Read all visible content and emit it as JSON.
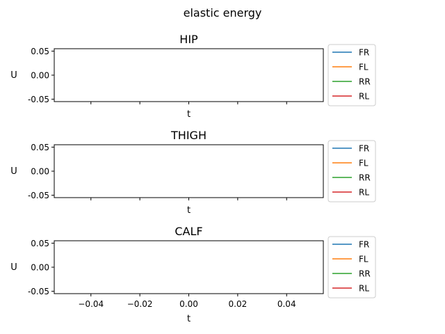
{
  "figure": {
    "suptitle": "elastic energy"
  },
  "chart_data": [
    {
      "type": "line",
      "title": "HIP",
      "xlabel": "t",
      "ylabel": "U",
      "xlim": [
        -0.055,
        0.055
      ],
      "ylim": [
        -0.055,
        0.055
      ],
      "xticks": [
        -0.04,
        -0.02,
        0.0,
        0.02,
        0.04
      ],
      "yticks": [
        "0.05",
        "0.00",
        "-0.05"
      ],
      "show_xtick_labels": false,
      "grid": false,
      "legend_position": "outside-right",
      "series": [
        {
          "name": "FR",
          "color": "#1f77b4",
          "x": [],
          "y": []
        },
        {
          "name": "FL",
          "color": "#ff7f0e",
          "x": [],
          "y": []
        },
        {
          "name": "RR",
          "color": "#2ca02c",
          "x": [],
          "y": []
        },
        {
          "name": "RL",
          "color": "#d62728",
          "x": [],
          "y": []
        }
      ]
    },
    {
      "type": "line",
      "title": "THIGH",
      "xlabel": "t",
      "ylabel": "U",
      "xlim": [
        -0.055,
        0.055
      ],
      "ylim": [
        -0.055,
        0.055
      ],
      "xticks": [
        -0.04,
        -0.02,
        0.0,
        0.02,
        0.04
      ],
      "yticks": [
        "0.05",
        "0.00",
        "-0.05"
      ],
      "show_xtick_labels": false,
      "grid": false,
      "legend_position": "outside-right",
      "series": [
        {
          "name": "FR",
          "color": "#1f77b4",
          "x": [],
          "y": []
        },
        {
          "name": "FL",
          "color": "#ff7f0e",
          "x": [],
          "y": []
        },
        {
          "name": "RR",
          "color": "#2ca02c",
          "x": [],
          "y": []
        },
        {
          "name": "RL",
          "color": "#d62728",
          "x": [],
          "y": []
        }
      ]
    },
    {
      "type": "line",
      "title": "CALF",
      "xlabel": "t",
      "ylabel": "U",
      "xlim": [
        -0.055,
        0.055
      ],
      "ylim": [
        -0.055,
        0.055
      ],
      "xticks": [
        -0.04,
        -0.02,
        0.0,
        0.02,
        0.04
      ],
      "xtick_labels": [
        "−0.04",
        "−0.02",
        "0.00",
        "0.02",
        "0.04"
      ],
      "yticks": [
        "0.05",
        "0.00",
        "-0.05"
      ],
      "show_xtick_labels": true,
      "grid": false,
      "legend_position": "outside-right",
      "series": [
        {
          "name": "FR",
          "color": "#1f77b4",
          "x": [],
          "y": []
        },
        {
          "name": "FL",
          "color": "#ff7f0e",
          "x": [],
          "y": []
        },
        {
          "name": "RR",
          "color": "#2ca02c",
          "x": [],
          "y": []
        },
        {
          "name": "RL",
          "color": "#d62728",
          "x": [],
          "y": []
        }
      ]
    }
  ]
}
